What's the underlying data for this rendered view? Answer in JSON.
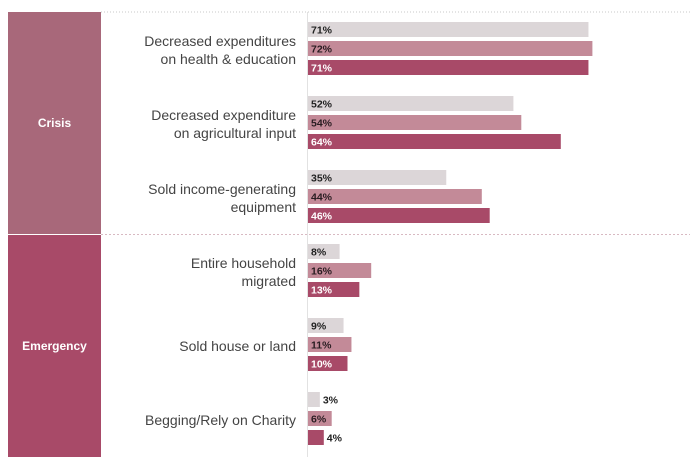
{
  "chart_data": {
    "type": "bar",
    "orientation": "horizontal",
    "value_format": "percent",
    "xlim": [
      0,
      100
    ],
    "colors": [
      "#dcd6d8",
      "#c38a98",
      "#a84a68"
    ],
    "band_colors": {
      "Crisis": "#a8687a",
      "Emergency": "#a84a68"
    },
    "groups": [
      {
        "name": "Crisis",
        "categories": [
          {
            "label": [
              "Decreased expenditures",
              "on health & education"
            ],
            "values": [
              71,
              72,
              71
            ]
          },
          {
            "label": [
              "Decreased expenditure",
              "on agricultural input"
            ],
            "values": [
              52,
              54,
              64
            ]
          },
          {
            "label": [
              "Sold income-generating",
              "equipment"
            ],
            "values": [
              35,
              44,
              46
            ]
          }
        ]
      },
      {
        "name": "Emergency",
        "categories": [
          {
            "label": [
              "Entire household",
              "migrated"
            ],
            "values": [
              8,
              16,
              13
            ]
          },
          {
            "label": [
              "Sold house or land"
            ],
            "values": [
              9,
              11,
              10
            ]
          },
          {
            "label": [
              "Begging/Rely on Charity"
            ],
            "values": [
              3,
              6,
              4
            ]
          }
        ]
      }
    ]
  }
}
